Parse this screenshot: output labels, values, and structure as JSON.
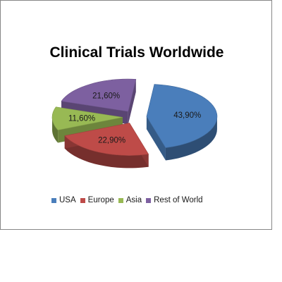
{
  "chart_data": {
    "type": "pie",
    "title": "Clinical Trials Worldwide",
    "categories": [
      "USA",
      "Europe",
      "Asia",
      "Rest of World"
    ],
    "values": [
      43.9,
      22.9,
      11.6,
      21.6
    ],
    "data_labels": [
      "43,90%",
      "22,90%",
      "11,60%",
      "21,60%"
    ],
    "colors": [
      "#4A7EBB",
      "#BE4B48",
      "#98B954",
      "#7D60A0"
    ],
    "exploded": true,
    "three_d": true,
    "legend_position": "bottom"
  }
}
